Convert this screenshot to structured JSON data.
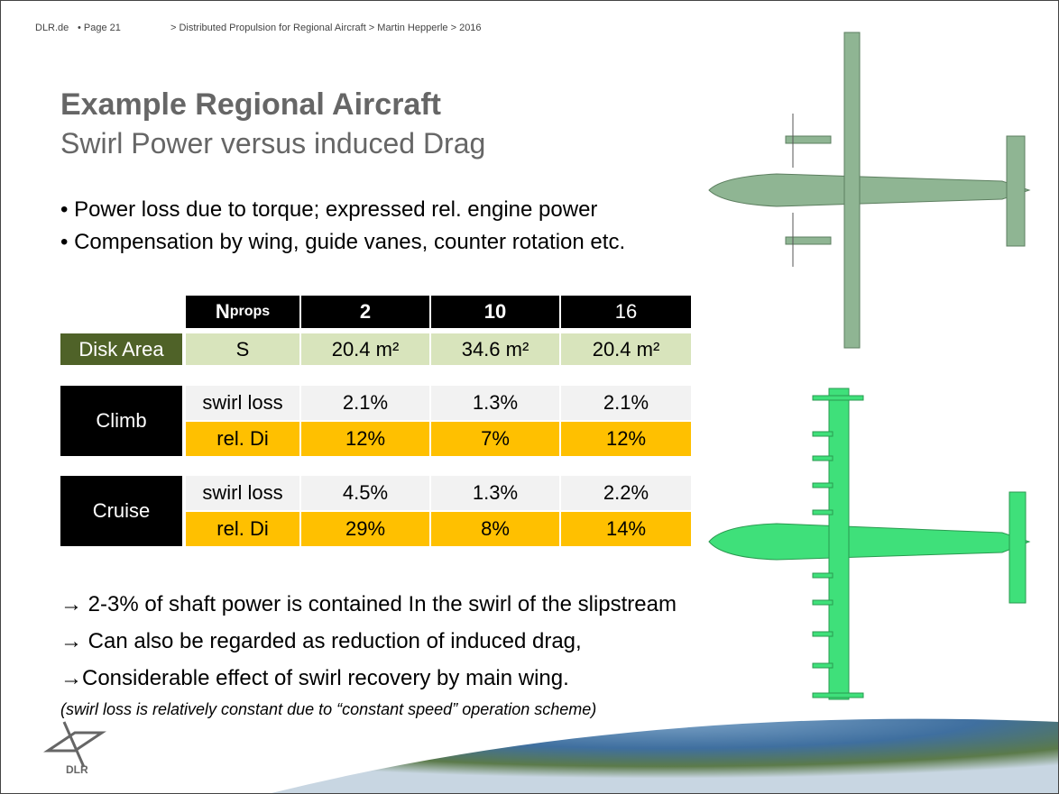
{
  "header": {
    "site": "DLR.de",
    "page": "• Page 21",
    "breadcrumb": "> Distributed Propulsion for Regional Aircraft > Martin Hepperle > 2016"
  },
  "title": "Example Regional Aircraft",
  "subtitle": "Swirl Power versus induced Drag",
  "bullets": [
    "Power loss due to torque; expressed rel. engine power",
    "Compensation by wing, guide vanes, counter rotation etc."
  ],
  "table": {
    "n_label": "N",
    "n_sub": "props",
    "columns": [
      "2",
      "10",
      "16"
    ],
    "disk_area": {
      "label": "Disk Area",
      "param": "S",
      "values": [
        "20.4 m²",
        "34.6 m²",
        "20.4 m²"
      ]
    },
    "groups": [
      {
        "phase": "Climb",
        "rows": [
          {
            "param": "swirl loss",
            "values": [
              "2.1%",
              "1.3%",
              "2.1%"
            ]
          },
          {
            "param": "rel. Di",
            "values": [
              "12%",
              "7%",
              "12%"
            ]
          }
        ]
      },
      {
        "phase": "Cruise",
        "rows": [
          {
            "param": "swirl loss",
            "values": [
              "4.5%",
              "1.3%",
              "2.2%"
            ]
          },
          {
            "param": "rel. Di",
            "values": [
              "29%",
              "8%",
              "14%"
            ]
          }
        ]
      }
    ]
  },
  "conclusions": [
    "→ 2-3% of shaft power is contained In the swirl of the slipstream",
    "→ Can also be regarded as reduction of induced drag,",
    "→Considerable effect of swirl recovery by main wing."
  ],
  "note": "(swirl loss is relatively constant due to “constant speed” operation scheme)",
  "logo": "DLR"
}
